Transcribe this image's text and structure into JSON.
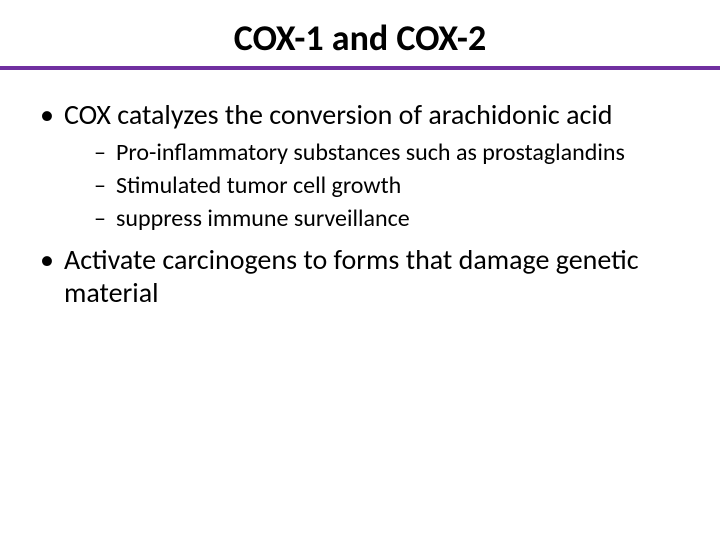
{
  "slide": {
    "title": "COX-1 and COX-2",
    "title_fontsize": 36,
    "title_fontweight": 700,
    "title_color": "#000000",
    "accent_color": "#7030a0",
    "accent_height": 4,
    "background_color": "#ffffff",
    "body_color": "#000000",
    "bullets": [
      {
        "text": "COX catalyzes the conversion of arachidonic acid",
        "fontsize": 28,
        "sub": [
          {
            "text": "Pro-inflammatory substances such as prostaglandins",
            "fontsize": 24
          },
          {
            "text": "Stimulated tumor cell growth",
            "fontsize": 24
          },
          {
            "text": "suppress immune surveillance",
            "fontsize": 24
          }
        ]
      },
      {
        "text": "Activate carcinogens to forms that damage genetic material",
        "fontsize": 28,
        "sub": []
      }
    ]
  }
}
